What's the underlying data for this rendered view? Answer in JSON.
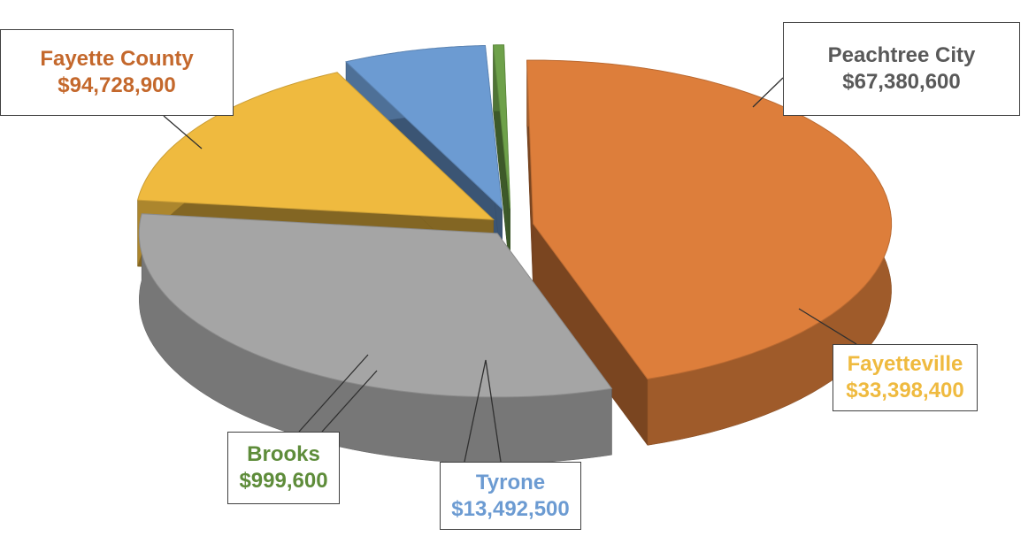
{
  "chart_data": {
    "type": "pie",
    "style": "3d-exploded",
    "legend": "none",
    "slices": [
      {
        "name": "Fayette County",
        "value": 94728900,
        "label": "$94,728,900",
        "color": "#DD7E3B"
      },
      {
        "name": "Peachtree City",
        "value": 67380600,
        "label": "$67,380,600",
        "color": "#A5A5A5"
      },
      {
        "name": "Fayetteville",
        "value": 33398400,
        "label": "$33,398,400",
        "color": "#EFBA3F"
      },
      {
        "name": "Tyrone",
        "value": 13492500,
        "label": "$13,492,500",
        "color": "#6C9BD2"
      },
      {
        "name": "Brooks",
        "value": 999600,
        "label": "$999,600",
        "color": "#6EA14A"
      }
    ]
  }
}
